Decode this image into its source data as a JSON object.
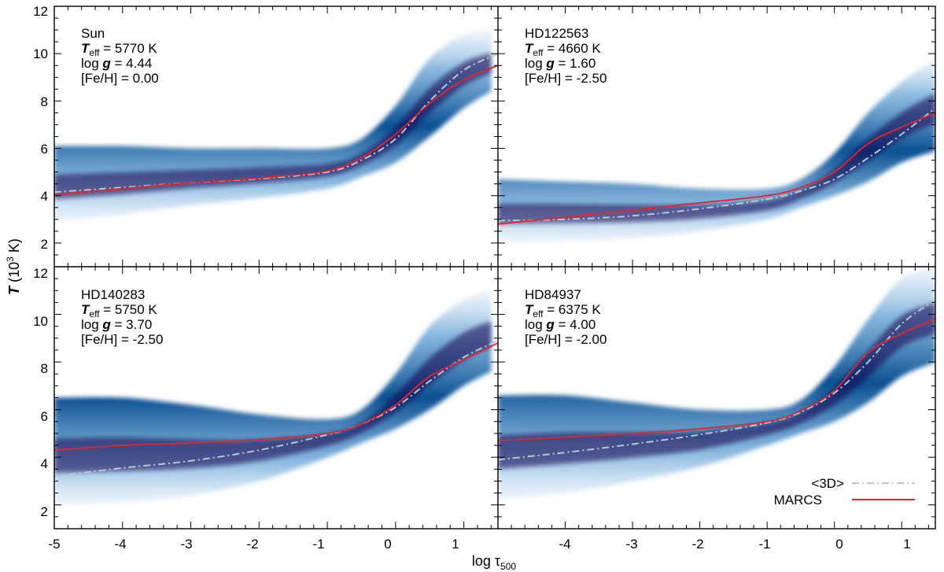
{
  "chart_data": {
    "type": "line",
    "xlabel": "log τ",
    "xlabel_sub": "500",
    "ylabel_symbol": "T",
    "ylabel_units": "(10",
    "ylabel_exp": "3",
    "ylabel_tail": " K)",
    "xlim": [
      -5,
      1.5
    ],
    "ylim": [
      1,
      12
    ],
    "x_ticks": [
      -5,
      -4,
      -3,
      -2,
      -1,
      0,
      1
    ],
    "x_tick_labels_left": [
      "-5",
      "-4",
      "-3",
      "-2",
      "-1",
      "0",
      "1"
    ],
    "x_tick_labels_right": [
      "-4",
      "-3",
      "-2",
      "-1",
      "0",
      "1"
    ],
    "y_ticks_top": [
      "12",
      "10",
      "8",
      "6",
      "4",
      "2"
    ],
    "y_ticks_bottom": [
      "12",
      "10",
      "8",
      "6",
      "4",
      "2"
    ],
    "legend": {
      "position": "bottom-right",
      "entries": [
        {
          "label": "<3D>",
          "color": "#b8c8d2",
          "style": "dash-dot"
        },
        {
          "label": "MARCS",
          "color": "#e3262e",
          "style": "solid"
        }
      ]
    },
    "colors": {
      "density_dark": "#1a0a4a",
      "density_mid": "#0a5aa0",
      "density_light": "#6fa9d8",
      "mean3d": "#b8c8d2",
      "marcs": "#e3262e"
    },
    "panels": [
      {
        "star": "Sun",
        "teff_symbol": "T",
        "teff_sub": "eff",
        "teff_value": " = 5770 K",
        "logg_prefix": "log ",
        "logg_symbol": "g",
        "logg_value": " = 4.44",
        "feh": "[Fe/H] = 0.00",
        "mean3d": {
          "x": [
            -5,
            -4,
            -3,
            -2,
            -1,
            -0.5,
            0,
            0.5,
            1,
            1.5
          ],
          "y": [
            4.15,
            4.35,
            4.55,
            4.72,
            5.0,
            5.5,
            6.4,
            8.0,
            9.3,
            10.0
          ]
        },
        "marcs": {
          "x": [
            -5,
            -4,
            -3,
            -2,
            -1,
            -0.5,
            0,
            0.5,
            1,
            1.5
          ],
          "y": [
            4.05,
            4.3,
            4.55,
            4.75,
            5.05,
            5.6,
            6.6,
            7.9,
            8.9,
            9.5
          ]
        },
        "band": {
          "x": [
            -5,
            -4,
            -3,
            -2,
            -1,
            -0.5,
            0,
            0.5,
            1,
            1.4
          ],
          "lo": [
            2.9,
            3.2,
            3.6,
            3.9,
            4.3,
            4.8,
            5.4,
            6.5,
            7.7,
            8.4
          ],
          "hi": [
            6.1,
            6.1,
            6.0,
            6.0,
            6.0,
            6.4,
            7.8,
            9.8,
            10.8,
            11.0
          ]
        }
      },
      {
        "star": "HD122563",
        "teff_symbol": "T",
        "teff_sub": "eff",
        "teff_value": " = 4660 K",
        "logg_prefix": "log ",
        "logg_symbol": "g",
        "logg_value": " = 1.60",
        "feh": "[Fe/H] = -2.50",
        "mean3d": {
          "x": [
            -5,
            -4,
            -3,
            -2,
            -1,
            -0.5,
            0,
            0.5,
            1,
            1.5
          ],
          "y": [
            2.95,
            3.0,
            3.15,
            3.45,
            3.85,
            4.2,
            4.7,
            5.6,
            6.6,
            7.7
          ]
        },
        "marcs": {
          "x": [
            -5,
            -4,
            -3,
            -2,
            -1,
            -0.5,
            0,
            0.5,
            1,
            1.5
          ],
          "y": [
            2.8,
            3.1,
            3.4,
            3.7,
            4.0,
            4.35,
            5.0,
            6.2,
            6.9,
            7.5
          ]
        },
        "band": {
          "x": [
            -5,
            -4,
            -3,
            -2,
            -1,
            -0.5,
            0,
            0.5,
            1,
            1.5
          ],
          "lo": [
            2.0,
            2.1,
            2.2,
            2.5,
            3.0,
            3.5,
            4.0,
            4.6,
            5.4,
            5.9
          ],
          "hi": [
            4.7,
            4.6,
            4.5,
            4.3,
            4.3,
            4.7,
            5.8,
            7.5,
            8.8,
            9.8
          ]
        }
      },
      {
        "star": "HD140283",
        "teff_symbol": "T",
        "teff_sub": "eff",
        "teff_value": " = 5750 K",
        "logg_prefix": "log ",
        "logg_symbol": "g",
        "logg_value": " = 3.70",
        "feh": "[Fe/H] = -2.50",
        "mean3d": {
          "x": [
            -5,
            -4,
            -3,
            -2,
            -1,
            -0.5,
            0,
            0.5,
            1,
            1.5
          ],
          "y": [
            3.2,
            3.55,
            3.85,
            4.3,
            4.95,
            5.4,
            6.1,
            7.2,
            8.2,
            8.9
          ]
        },
        "marcs": {
          "x": [
            -5,
            -4,
            -3,
            -2,
            -1,
            -0.5,
            0,
            0.5,
            1,
            1.5
          ],
          "y": [
            4.3,
            4.5,
            4.6,
            4.75,
            5.0,
            5.4,
            6.2,
            7.4,
            8.1,
            8.8
          ]
        },
        "band": {
          "x": [
            -5,
            -4,
            -3,
            -2,
            -1,
            -0.5,
            0,
            0.5,
            1,
            1.4
          ],
          "lo": [
            2.0,
            2.1,
            2.4,
            3.0,
            4.0,
            4.6,
            5.2,
            6.0,
            7.0,
            7.6
          ],
          "hi": [
            6.5,
            6.5,
            6.2,
            5.8,
            5.6,
            6.0,
            7.5,
            9.5,
            10.6,
            11.0
          ]
        }
      },
      {
        "star": "HD84937",
        "teff_symbol": "T",
        "teff_sub": "eff",
        "teff_value": " = 6375 K",
        "logg_prefix": "log ",
        "logg_symbol": "g",
        "logg_value": " = 4.00",
        "feh": "[Fe/H] = -2.00",
        "mean3d": {
          "x": [
            -5,
            -4,
            -3,
            -2,
            -1,
            -0.5,
            0,
            0.5,
            1,
            1.5
          ],
          "y": [
            3.9,
            4.2,
            4.55,
            4.95,
            5.45,
            5.9,
            6.7,
            8.0,
            9.6,
            10.6
          ]
        },
        "marcs": {
          "x": [
            -5,
            -4,
            -3,
            -2,
            -1,
            -0.5,
            0,
            0.5,
            1,
            1.5
          ],
          "y": [
            4.7,
            4.85,
            5.0,
            5.2,
            5.5,
            5.95,
            6.8,
            8.4,
            9.2,
            9.8
          ]
        },
        "band": {
          "x": [
            -5,
            -4,
            -3,
            -2,
            -1,
            -0.5,
            0,
            0.5,
            1,
            1.5
          ],
          "lo": [
            2.2,
            2.5,
            3.0,
            3.6,
            4.5,
            5.0,
            5.5,
            6.3,
            7.4,
            8.0
          ],
          "hi": [
            6.6,
            6.6,
            6.3,
            6.0,
            6.0,
            6.4,
            7.8,
            9.8,
            11.5,
            12.0
          ]
        }
      }
    ]
  }
}
